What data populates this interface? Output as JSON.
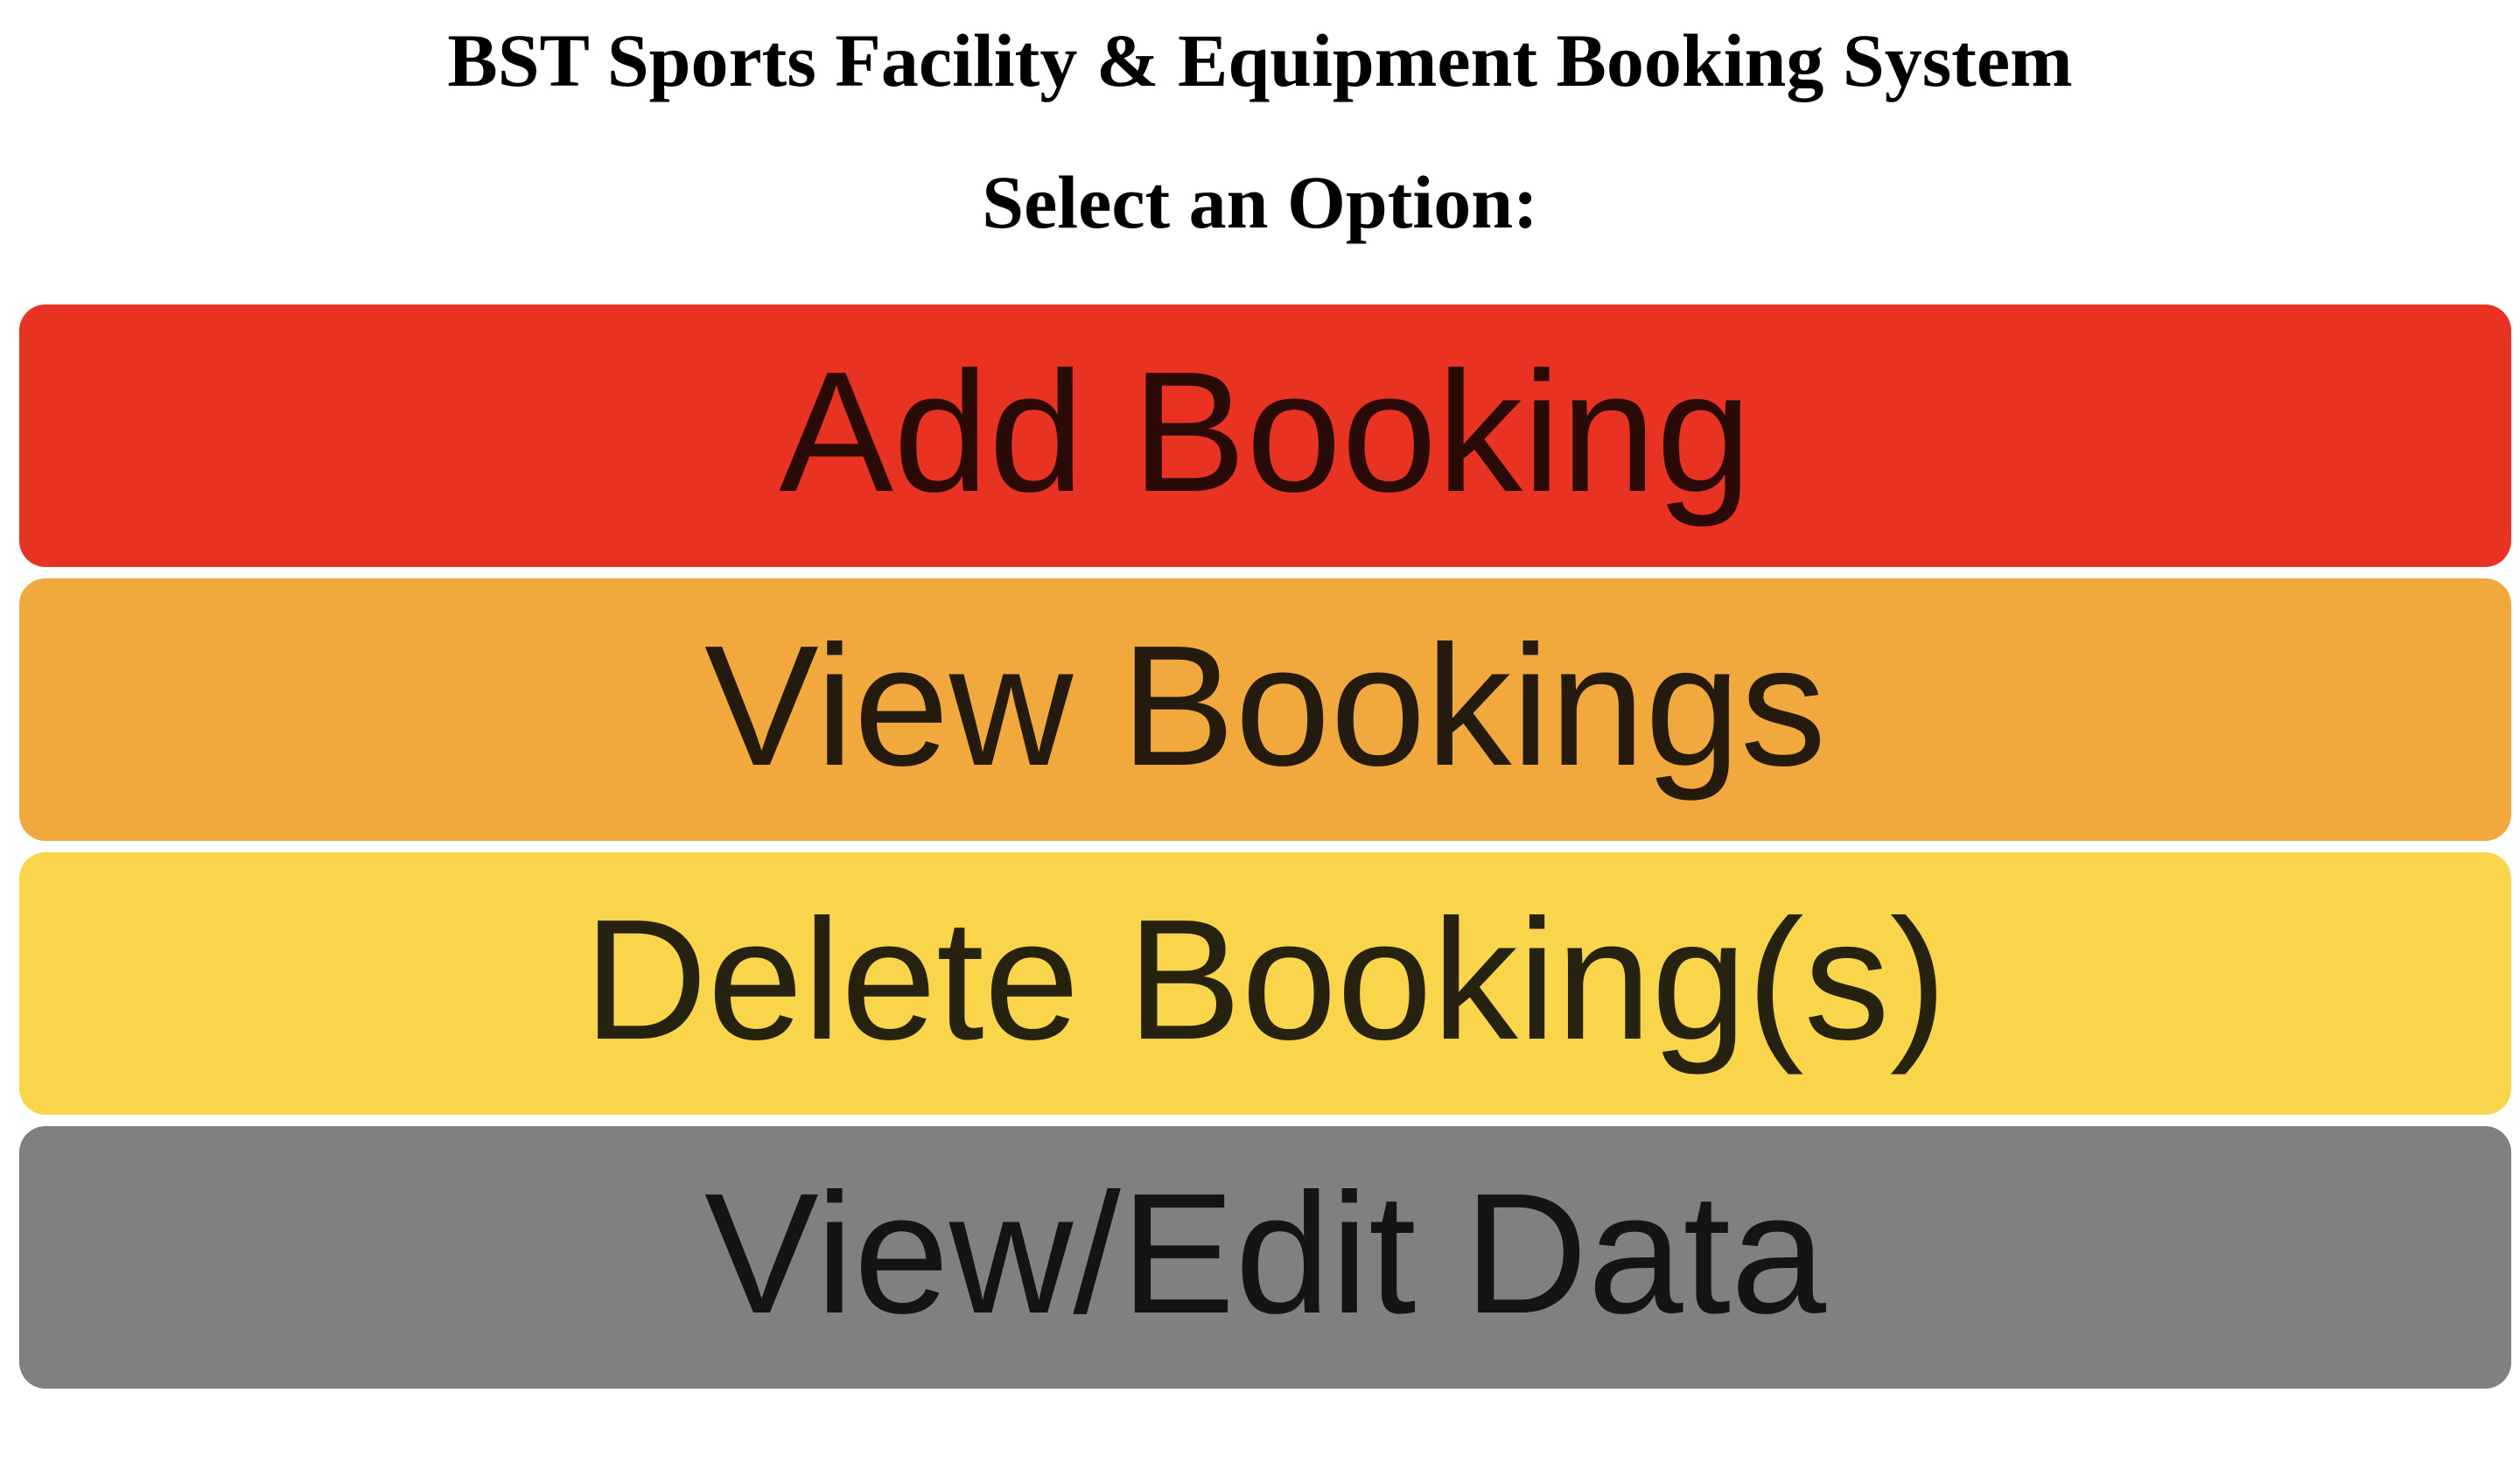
{
  "app_title": "BST Sports Facility & Equipment Booking System",
  "prompt": "Select an Option:",
  "options": [
    {
      "label": "Add Booking",
      "bg_color": "#e83323",
      "text_color": "#2a0a06"
    },
    {
      "label": "View Bookings",
      "bg_color": "#f1a83d",
      "text_color": "#241a0e"
    },
    {
      "label": "Delete Booking(s)",
      "bg_color": "#f8d54b",
      "text_color": "#25220f"
    },
    {
      "label": "View/Edit Data",
      "bg_color": "#808080",
      "text_color": "#141414"
    }
  ]
}
